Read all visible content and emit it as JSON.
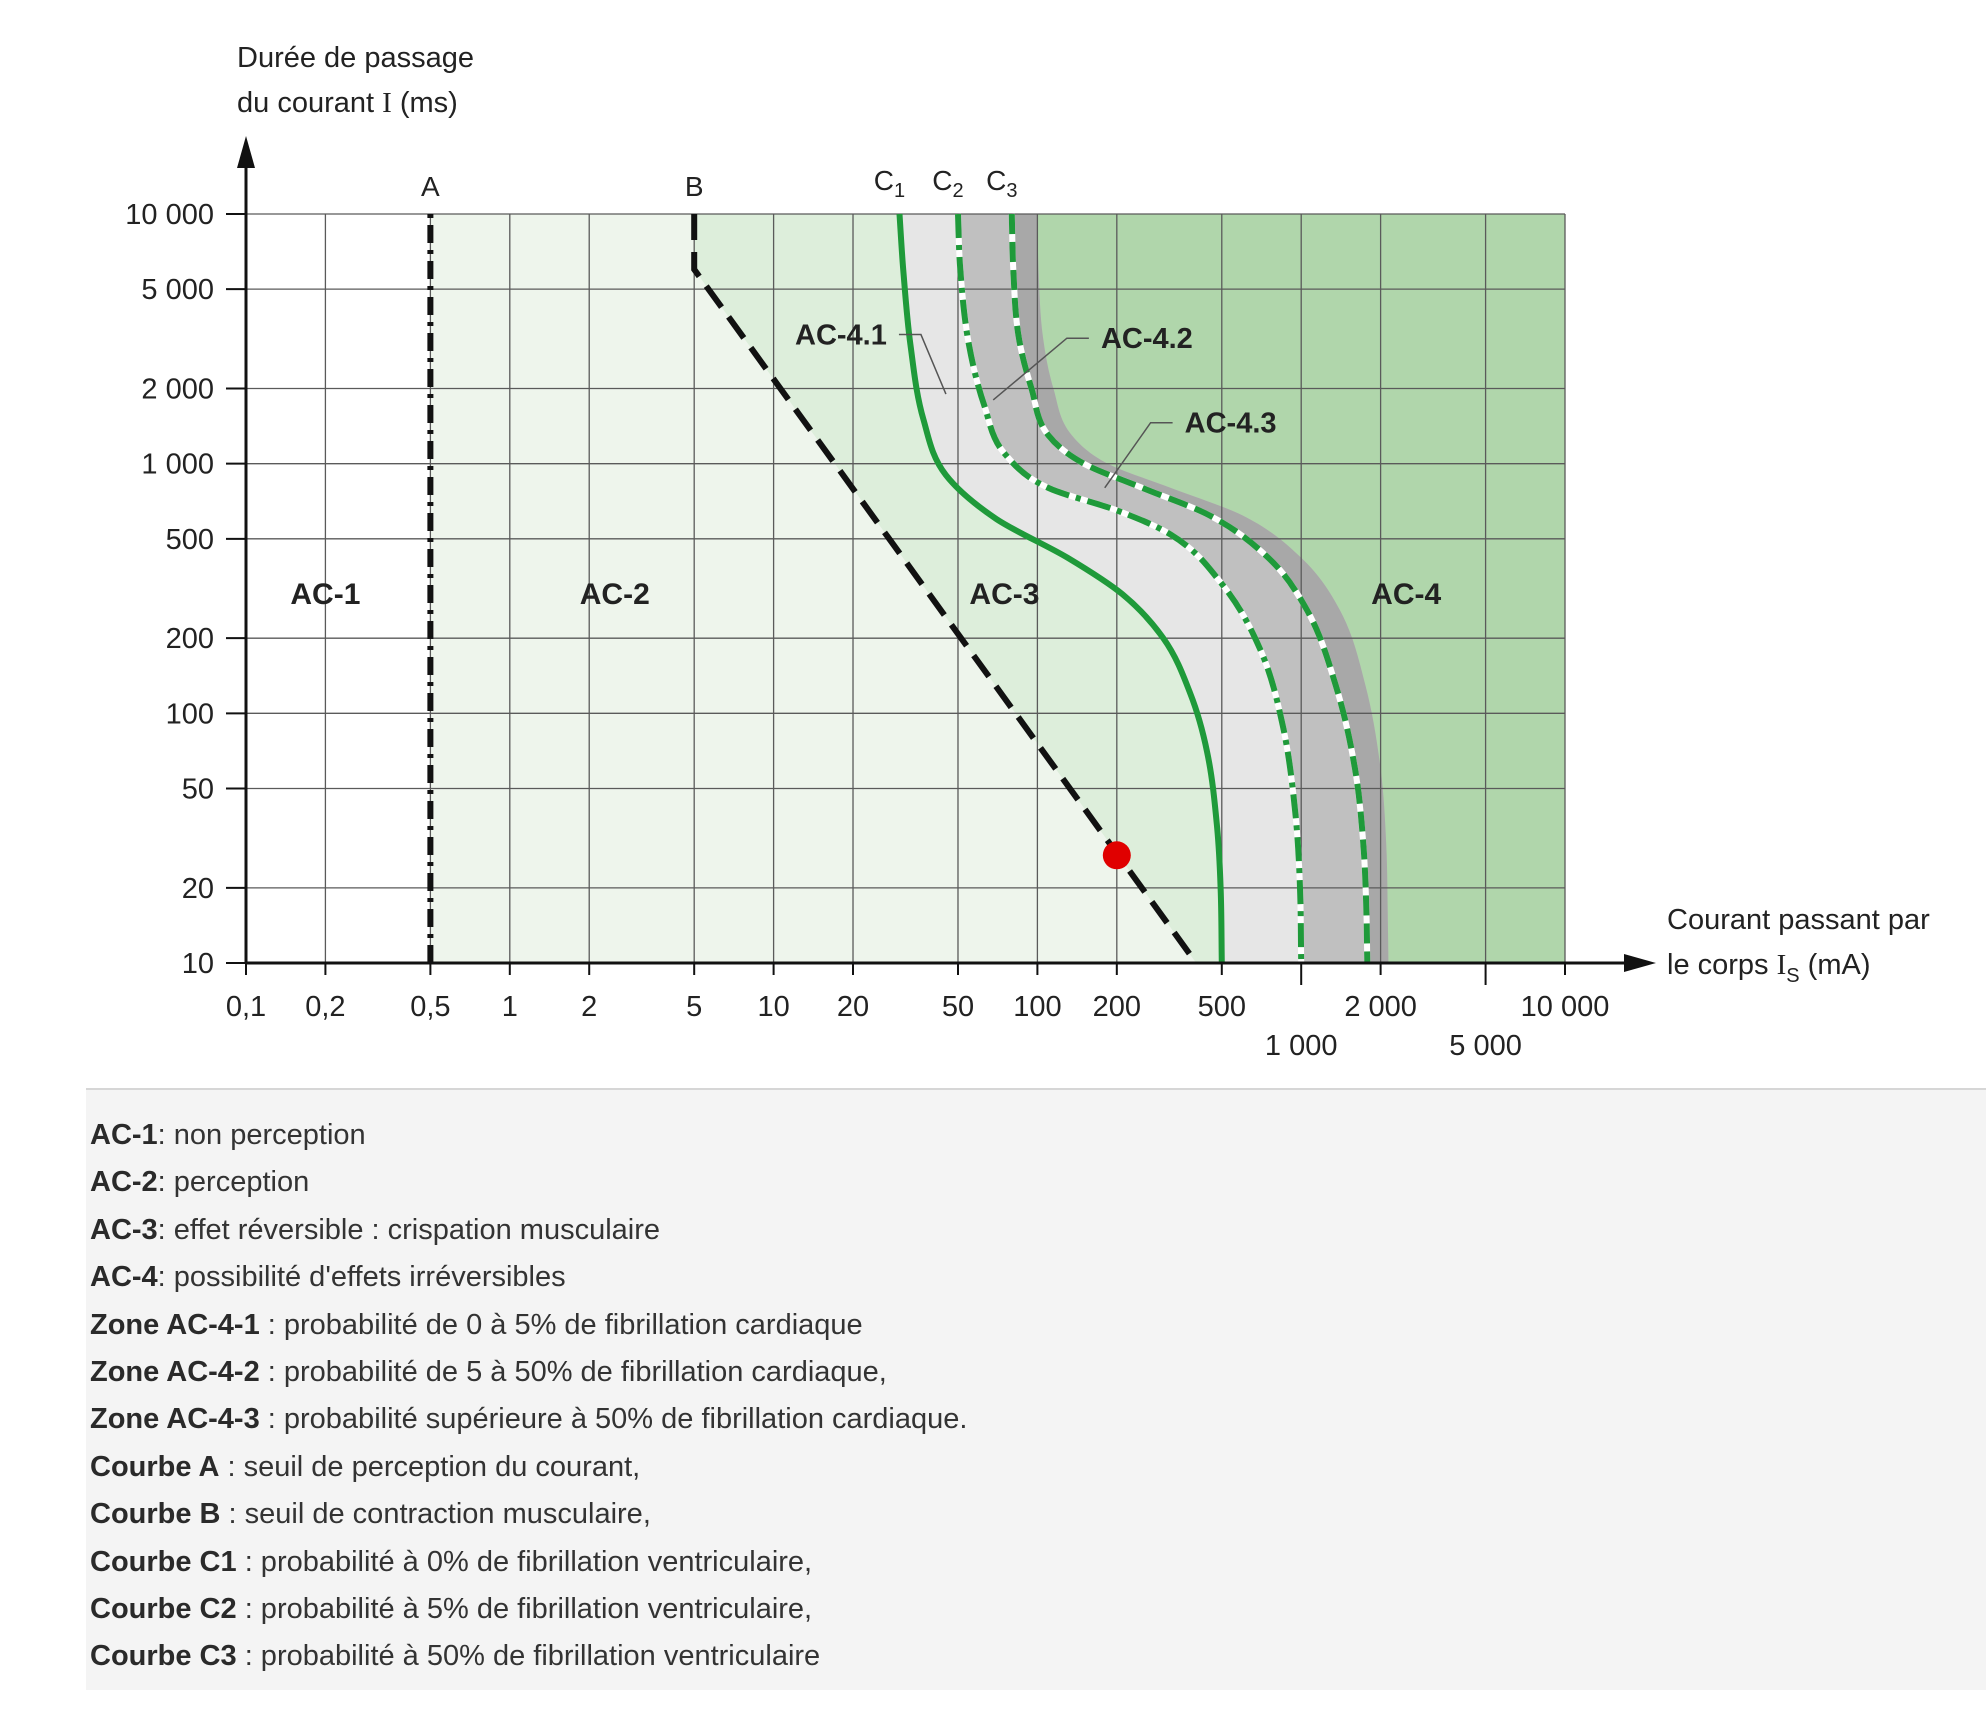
{
  "chart_data": {
    "type": "line",
    "y_axis_label_line1": "Durée de passage",
    "y_axis_label_line2_prefix": "du courant ",
    "y_axis_label_symbol": "I",
    "y_axis_label_line2_suffix": " (ms)",
    "x_axis_label_line1": "Courant passant par",
    "x_axis_label_line2_prefix": "le corps ",
    "x_axis_label_symbol": "I",
    "x_axis_label_subscript": "S",
    "x_axis_label_line2_suffix": " (mA)",
    "x_scale": "log",
    "y_scale": "log",
    "xlim": [
      0.1,
      10000
    ],
    "ylim": [
      10,
      10000
    ],
    "grid": true,
    "x_ticks": [
      {
        "value": 0.1,
        "label": "0,1",
        "row": 0
      },
      {
        "value": 0.2,
        "label": "0,2",
        "row": 0
      },
      {
        "value": 0.5,
        "label": "0,5",
        "row": 0
      },
      {
        "value": 1,
        "label": "1",
        "row": 0
      },
      {
        "value": 2,
        "label": "2",
        "row": 0
      },
      {
        "value": 5,
        "label": "5",
        "row": 0
      },
      {
        "value": 10,
        "label": "10",
        "row": 0
      },
      {
        "value": 20,
        "label": "20",
        "row": 0
      },
      {
        "value": 50,
        "label": "50",
        "row": 0
      },
      {
        "value": 100,
        "label": "100",
        "row": 0
      },
      {
        "value": 200,
        "label": "200",
        "row": 0
      },
      {
        "value": 500,
        "label": "500",
        "row": 0
      },
      {
        "value": 1000,
        "label": "1 000",
        "row": 1
      },
      {
        "value": 2000,
        "label": "2 000",
        "row": 0
      },
      {
        "value": 5000,
        "label": "5 000",
        "row": 1
      },
      {
        "value": 10000,
        "label": "10 000",
        "row": 0
      }
    ],
    "y_ticks": [
      {
        "value": 10,
        "label": "10"
      },
      {
        "value": 20,
        "label": "20"
      },
      {
        "value": 50,
        "label": "50"
      },
      {
        "value": 100,
        "label": "100"
      },
      {
        "value": 200,
        "label": "200"
      },
      {
        "value": 500,
        "label": "500"
      },
      {
        "value": 1000,
        "label": "1 000"
      },
      {
        "value": 2000,
        "label": "2 000"
      },
      {
        "value": 5000,
        "label": "5 000"
      },
      {
        "value": 10000,
        "label": "10 000"
      }
    ],
    "zones": [
      {
        "name": "AC-1",
        "label_x": 0.2,
        "label_y": 300,
        "color": "#ffffff"
      },
      {
        "name": "AC-2",
        "label_x": 2.5,
        "label_y": 300,
        "color": "#eef5ec"
      },
      {
        "name": "AC-3",
        "label_x": 75,
        "label_y": 300,
        "color": "#ddeedb"
      },
      {
        "name": "AC-4",
        "label_x": 2500,
        "label_y": 300,
        "color": "#b0d6ab"
      }
    ],
    "subzones": [
      {
        "name": "AC-4.1",
        "color": "#e6e6e6",
        "label_x": 18,
        "label_y": 3000,
        "pointer_x": 45,
        "pointer_y": 1900
      },
      {
        "name": "AC-4.2",
        "color": "#c0c0c0",
        "label_x": 260,
        "label_y": 2900,
        "pointer_x": 68,
        "pointer_y": 1800
      },
      {
        "name": "AC-4.3",
        "color": "#a8a8a8",
        "label_x": 540,
        "label_y": 1330,
        "pointer_x": 180,
        "pointer_y": 800
      }
    ],
    "series": [
      {
        "name": "A",
        "style": "dash-dot",
        "color": "#111111",
        "points": [
          [
            0.5,
            10
          ],
          [
            0.5,
            10000
          ]
        ]
      },
      {
        "name": "B",
        "style": "dashed",
        "color": "#111111",
        "points": [
          [
            5,
            10000
          ],
          [
            5,
            6000
          ],
          [
            400,
            10
          ]
        ]
      },
      {
        "name": "C1",
        "label_main": "C",
        "label_sub": "1",
        "style": "solid",
        "color": "#1f9a3a",
        "points": [
          [
            30,
            10000
          ],
          [
            31,
            6000
          ],
          [
            33,
            3000
          ],
          [
            37,
            1500
          ],
          [
            45,
            900
          ],
          [
            70,
            600
          ],
          [
            130,
            420
          ],
          [
            210,
            300
          ],
          [
            300,
            200
          ],
          [
            380,
            120
          ],
          [
            440,
            70
          ],
          [
            480,
            35
          ],
          [
            495,
            20
          ],
          [
            500,
            10
          ]
        ]
      },
      {
        "name": "C2",
        "label_main": "C",
        "label_sub": "2",
        "style": "dash-dot",
        "color": "#1f9a3a",
        "points": [
          [
            50,
            10000
          ],
          [
            51,
            6000
          ],
          [
            55,
            3000
          ],
          [
            63,
            1700
          ],
          [
            75,
            1100
          ],
          [
            110,
            800
          ],
          [
            200,
            650
          ],
          [
            320,
            520
          ],
          [
            500,
            330
          ],
          [
            700,
            180
          ],
          [
            850,
            90
          ],
          [
            950,
            40
          ],
          [
            990,
            20
          ],
          [
            1000,
            10
          ]
        ]
      },
      {
        "name": "C3",
        "label_main": "C",
        "label_sub": "3",
        "style": "dashed",
        "color": "#1f9a3a",
        "points": [
          [
            80,
            10000
          ],
          [
            81,
            6000
          ],
          [
            85,
            3200
          ],
          [
            95,
            2000
          ],
          [
            110,
            1300
          ],
          [
            150,
            1000
          ],
          [
            250,
            800
          ],
          [
            450,
            620
          ],
          [
            750,
            420
          ],
          [
            1050,
            260
          ],
          [
            1350,
            130
          ],
          [
            1600,
            60
          ],
          [
            1720,
            30
          ],
          [
            1770,
            15
          ],
          [
            1780,
            10
          ]
        ]
      }
    ],
    "ac43_outer": [
      [
        100,
        10000
      ],
      [
        101,
        6000
      ],
      [
        105,
        3200
      ],
      [
        115,
        2000
      ],
      [
        135,
        1300
      ],
      [
        185,
        1000
      ],
      [
        320,
        800
      ],
      [
        600,
        620
      ],
      [
        1000,
        420
      ],
      [
        1400,
        260
      ],
      [
        1750,
        130
      ],
      [
        2000,
        60
      ],
      [
        2100,
        30
      ],
      [
        2130,
        15
      ],
      [
        2140,
        10
      ]
    ],
    "marker": {
      "x": 200,
      "y": 27,
      "color": "#e00000"
    }
  },
  "legend": [
    {
      "key": "AC-1",
      "text": ": non perception"
    },
    {
      "key": "AC-2",
      "text": ": perception"
    },
    {
      "key": "AC-3",
      "text": ": effet réversible : crispation musculaire"
    },
    {
      "key": "AC-4",
      "text": ": possibilité d'effets irréversibles"
    },
    {
      "key": "Zone AC-4-1",
      "text": " : probabilité de 0 à 5% de fibrillation cardiaque"
    },
    {
      "key": "Zone AC-4-2",
      "text": " : probabilité de 5 à 50% de fibrillation cardiaque,"
    },
    {
      "key": "Zone AC-4-3",
      "text": " : probabilité supérieure à 50% de fibrillation cardiaque."
    },
    {
      "key": "Courbe A",
      "text": " : seuil de perception du courant,"
    },
    {
      "key": "Courbe B",
      "text": " : seuil de contraction musculaire,"
    },
    {
      "key": "Courbe C1",
      "text": " : probabilité à 0% de fibrillation ventriculaire,"
    },
    {
      "key": "Courbe C2",
      "text": " : probabilité à 5% de fibrillation ventriculaire,"
    },
    {
      "key": "Courbe C3",
      "text": " : probabilité à 50% de fibrillation ventriculaire"
    }
  ]
}
